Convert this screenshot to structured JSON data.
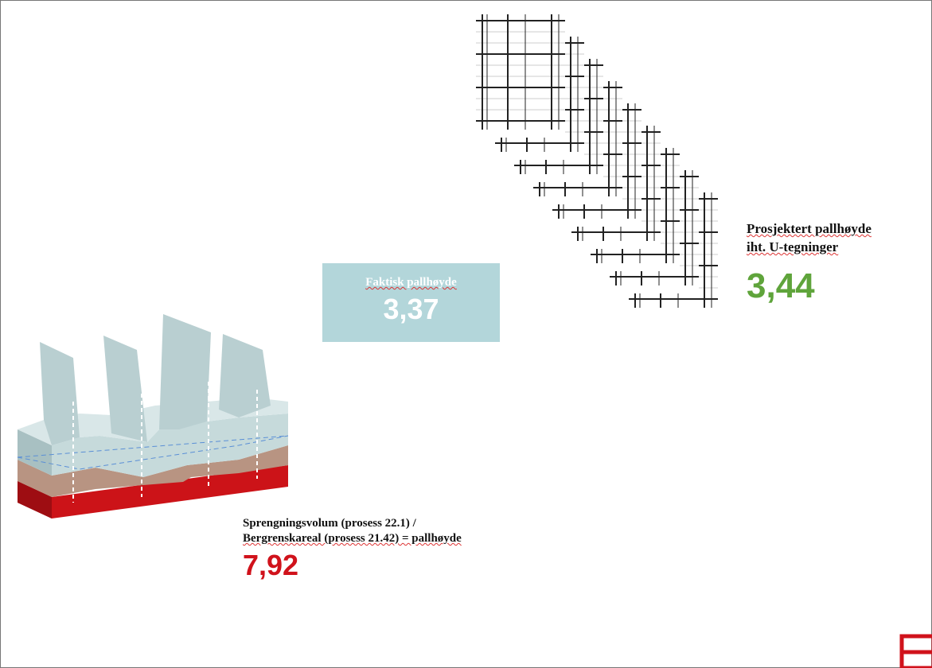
{
  "actual": {
    "label": "Faktisk pallhøyde",
    "value": "3,37"
  },
  "projected": {
    "label_line1": "Prosjektert pallhøyde",
    "label_line2": "iht. U-tegninger",
    "value": "3,44"
  },
  "calculated": {
    "label_line1": "Sprengningsvolum (prosess 22.1) /",
    "label_line2": "Bergrenskareal (prosess 21.42) = pallhøyde",
    "value": "7,92"
  }
}
